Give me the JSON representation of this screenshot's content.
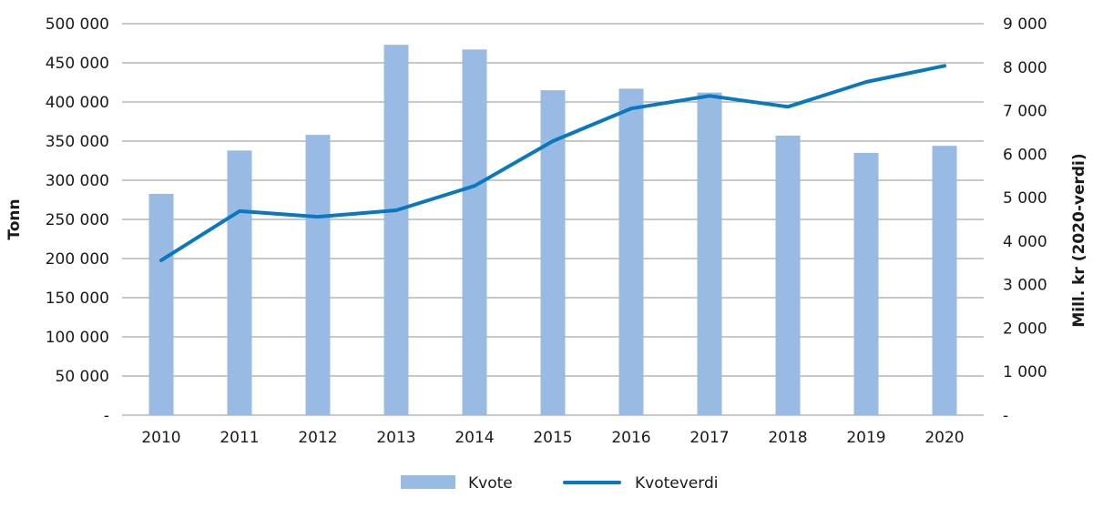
{
  "chart_data": {
    "type": "bar+line",
    "title": "",
    "categories": [
      "2010",
      "2011",
      "2012",
      "2013",
      "2014",
      "2015",
      "2016",
      "2017",
      "2018",
      "2019",
      "2020"
    ],
    "series": [
      {
        "name": "Kvote",
        "type": "bar",
        "axis": "left",
        "color": "#99bae3",
        "values": [
          282600,
          338000,
          358000,
          473000,
          467000,
          415000,
          417000,
          412000,
          357000,
          335000,
          344000
        ]
      },
      {
        "name": "Kvoteverdi",
        "type": "line",
        "axis": "right",
        "color": "#0a78be",
        "values": [
          3560,
          4690,
          4560,
          4710,
          5270,
          6300,
          7050,
          7340,
          7090,
          7660,
          8030
        ]
      }
    ],
    "ylabel": "Tonn",
    "ylabel_right": "Mill. kr (2020-verdi)",
    "xlabel": "",
    "ylim": [
      0,
      500000
    ],
    "ylim_right": [
      0,
      9000
    ],
    "yticks": [
      "-",
      "50 000",
      "100 000",
      "150 000",
      "200 000",
      "250 000",
      "300 000",
      "350 000",
      "400 000",
      "450 000",
      "500 000"
    ],
    "yticks_right": [
      "-",
      "1 000",
      "2 000",
      "3 000",
      "4 000",
      "5 000",
      "6 000",
      "7 000",
      "8 000",
      "9 000"
    ],
    "grid": true,
    "legend_position": "bottom"
  },
  "legend": {
    "items": [
      {
        "label": "Kvote",
        "kind": "bar",
        "color": "#99bae3"
      },
      {
        "label": "Kvoteverdi",
        "kind": "line",
        "color": "#0a78be"
      }
    ]
  },
  "colors": {
    "grid": "#a6a6a6",
    "bar": "#99bae3",
    "line": "#0a78be"
  }
}
